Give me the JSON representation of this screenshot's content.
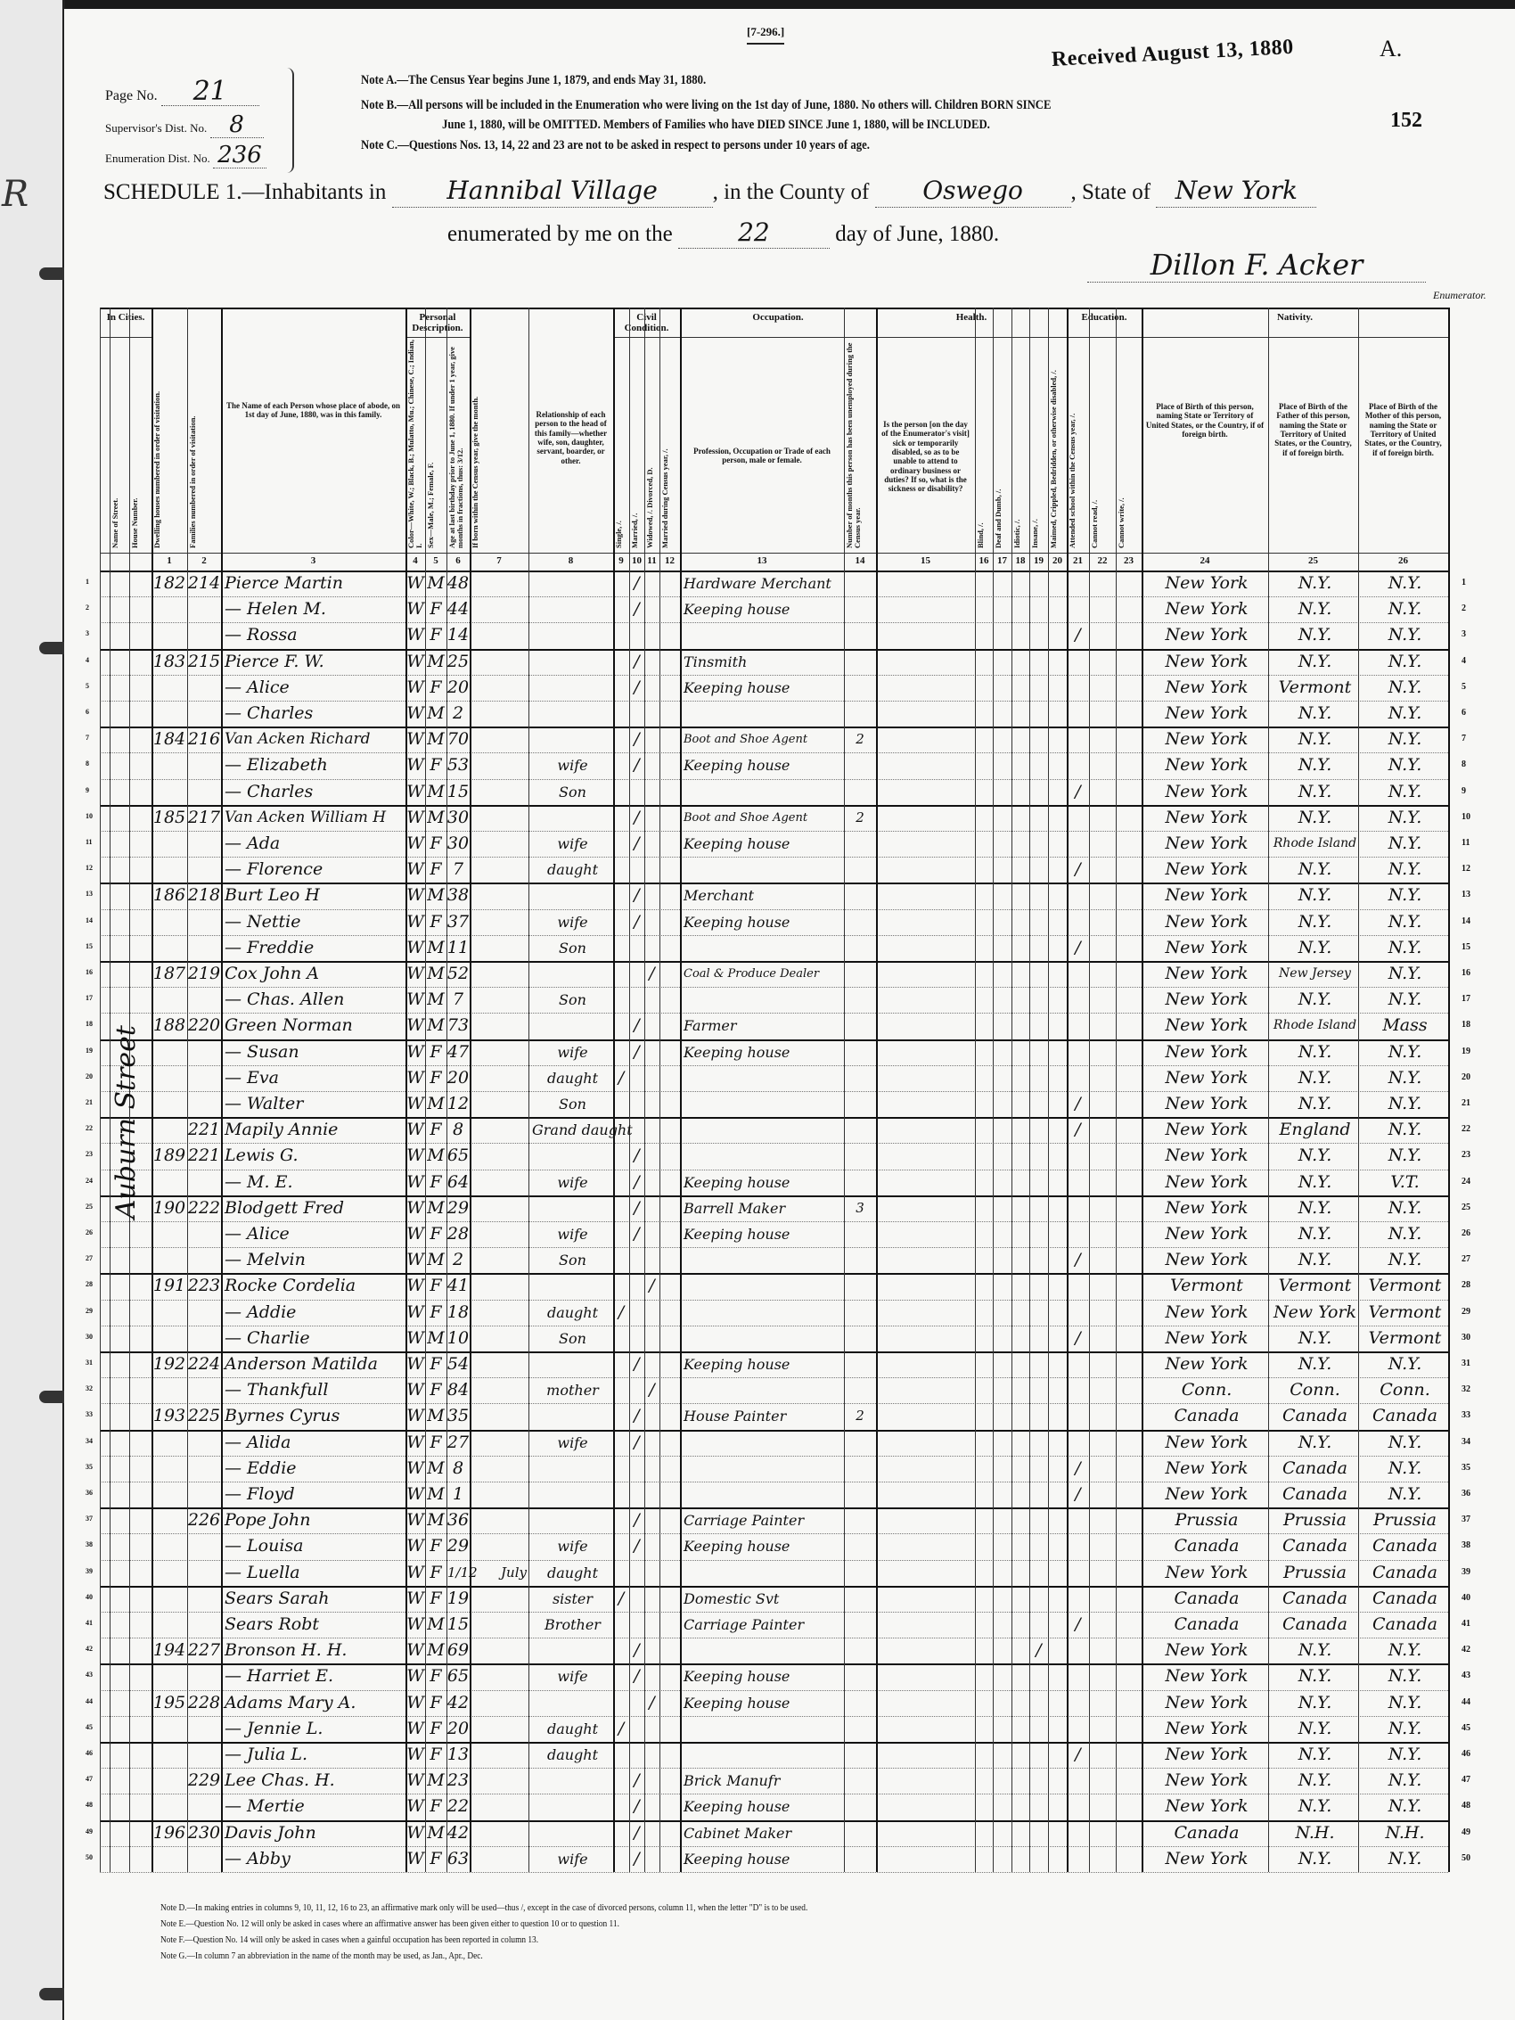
{
  "form": {
    "form_number": "[7-296.]",
    "stamp": "Received August 13, 1880",
    "corner_letter": "A.",
    "stamped_number": "152",
    "page_label": "Page No.",
    "page_no": "21",
    "supervisor_label": "Supervisor's Dist. No.",
    "supervisor_no": "8",
    "enumeration_label": "Enumeration Dist. No.",
    "enumeration_no": "236",
    "notes_top": [
      "Note A.—The Census Year begins June 1, 1879, and ends May 31, 1880.",
      "Note B.—All persons will be included in the Enumeration who were living on the 1st day of June, 1880.  No others will.  Children BORN SINCE",
      "June 1, 1880, will be OMITTED.  Members of Families who have DIED SINCE June 1, 1880, will be INCLUDED.",
      "Note C.—Questions Nos. 13, 14, 22 and 23 are not to be asked in respect to persons under 10 years of age."
    ]
  },
  "schedule": {
    "prefix": "SCHEDULE 1.—Inhabitants in",
    "place": "Hannibal Village",
    "county_label": ", in the County of",
    "county": "Oswego",
    "state_label": ", State of",
    "state": "New York",
    "enum_prefix": "enumerated by me on the",
    "day": "22",
    "enum_suffix": "day of June, 1880.",
    "enumerator_signature": "Dillon F. Acker",
    "enumerator_label": "Enumerator."
  },
  "headers": {
    "groups": {
      "cities": "In Cities.",
      "personal": "Personal Description.",
      "civil": "Civil Condition.",
      "occupation": "Occupation.",
      "health": "Health.",
      "education": "Education.",
      "nativity": "Nativity."
    },
    "columns": {
      "street": {
        "num": "",
        "label": "Name of Street."
      },
      "house": {
        "num": "",
        "label": "House Number."
      },
      "c1": {
        "num": "1",
        "label": "Dwelling houses numbered in order of visitation."
      },
      "c2": {
        "num": "2",
        "label": "Families numbered in order of visitation."
      },
      "c3": {
        "num": "3",
        "label": "The Name of each Person whose place of abode, on 1st day of June, 1880, was in this family."
      },
      "c4": {
        "num": "4",
        "label": "Color—White, W.; Black, B.; Mulatto, Mu.; Chinese, C.; Indian, I."
      },
      "c5": {
        "num": "5",
        "label": "Sex—Male, M.; Female, F."
      },
      "c6": {
        "num": "6",
        "label": "Age at last birthday prior to June 1, 1880. If under 1 year, give months in fractions, thus: 3/12."
      },
      "c7": {
        "num": "7",
        "label": "If born within the Census year, give the month."
      },
      "c8": {
        "num": "8",
        "label": "Relationship of each person to the head of this family—whether wife, son, daughter, servant, boarder, or other."
      },
      "c9": {
        "num": "9",
        "label": "Single, /."
      },
      "c10": {
        "num": "10",
        "label": "Married, /."
      },
      "c11": {
        "num": "11",
        "label": "Widowed, /.  Divorced, D."
      },
      "c12": {
        "num": "12",
        "label": "Married during Census year, /."
      },
      "c13": {
        "num": "13",
        "label": "Profession, Occupation or Trade of each person, male or female."
      },
      "c14": {
        "num": "14",
        "label": "Number of months this person has been unemployed during the Census year."
      },
      "c15": {
        "num": "15",
        "label": "Is the person [on the day of the Enumerator's visit] sick or temporarily disabled, so as to be unable to attend to ordinary business or duties? If so, what is the sickness or disability?"
      },
      "c16": {
        "num": "16",
        "label": "Blind, /."
      },
      "c17": {
        "num": "17",
        "label": "Deaf and Dumb, /."
      },
      "c18": {
        "num": "18",
        "label": "Idiotic, /."
      },
      "c19": {
        "num": "19",
        "label": "Insane, /."
      },
      "c20": {
        "num": "20",
        "label": "Maimed, Crippled, Bedridden, or otherwise disabled, /."
      },
      "c21": {
        "num": "21",
        "label": "Attended school within the Census year, /."
      },
      "c22": {
        "num": "22",
        "label": "Cannot read, /."
      },
      "c23": {
        "num": "23",
        "label": "Cannot write, /."
      },
      "c24": {
        "num": "24",
        "label": "Place of Birth of this person, naming State or Territory of United States, or the Country, if of foreign birth."
      },
      "c25": {
        "num": "25",
        "label": "Place of Birth of the Father of this person, naming the State or Territory of United States, or the Country, if of foreign birth."
      },
      "c26": {
        "num": "26",
        "label": "Place of Birth of the Mother of this person, naming the State or Territory of United States, or the Country, if of foreign birth."
      }
    }
  },
  "street_annotation": "Auburn Street",
  "rows": [
    {
      "n": "1",
      "dw": "182",
      "fam": "214",
      "name": "Pierce Martin",
      "color": "W",
      "sex": "M",
      "age": "48",
      "married": "/",
      "occ": "Hardware Merchant",
      "b": "New York",
      "fb": "N.Y.",
      "mb": "N.Y."
    },
    {
      "n": "2",
      "name": "— Helen M.",
      "color": "W",
      "sex": "F",
      "age": "44",
      "married": "/",
      "occ": "Keeping house",
      "b": "New York",
      "fb": "N.Y.",
      "mb": "N.Y."
    },
    {
      "n": "3",
      "name": "— Rossa",
      "color": "W",
      "sex": "F",
      "age": "14",
      "school": "/",
      "b": "New York",
      "fb": "N.Y.",
      "mb": "N.Y."
    },
    {
      "n": "4",
      "dw": "183",
      "fam": "215",
      "name": "Pierce F. W.",
      "color": "W",
      "sex": "M",
      "age": "25",
      "married": "/",
      "occ": "Tinsmith",
      "b": "New York",
      "fb": "N.Y.",
      "mb": "N.Y."
    },
    {
      "n": "5",
      "name": "— Alice",
      "color": "W",
      "sex": "F",
      "age": "20",
      "married": "/",
      "occ": "Keeping house",
      "b": "New York",
      "fb": "Vermont",
      "mb": "N.Y."
    },
    {
      "n": "6",
      "name": "— Charles",
      "color": "W",
      "sex": "M",
      "age": "2",
      "b": "New York",
      "fb": "N.Y.",
      "mb": "N.Y."
    },
    {
      "n": "7",
      "dw": "184",
      "fam": "216",
      "name": "Van Acken Richard",
      "color": "W",
      "sex": "M",
      "age": "70",
      "married": "/",
      "occ": "Boot and Shoe Agent",
      "unemp": "2",
      "b": "New York",
      "fb": "N.Y.",
      "mb": "N.Y."
    },
    {
      "n": "8",
      "name": "— Elizabeth",
      "color": "W",
      "sex": "F",
      "age": "53",
      "rel": "wife",
      "married": "/",
      "occ": "Keeping house",
      "b": "New York",
      "fb": "N.Y.",
      "mb": "N.Y."
    },
    {
      "n": "9",
      "name": "— Charles",
      "color": "W",
      "sex": "M",
      "age": "15",
      "rel": "Son",
      "school": "/",
      "b": "New York",
      "fb": "N.Y.",
      "mb": "N.Y."
    },
    {
      "n": "10",
      "dw": "185",
      "fam": "217",
      "name": "Van Acken William H",
      "color": "W",
      "sex": "M",
      "age": "30",
      "married": "/",
      "occ": "Boot and Shoe Agent",
      "unemp": "2",
      "b": "New York",
      "fb": "N.Y.",
      "mb": "N.Y."
    },
    {
      "n": "11",
      "name": "— Ada",
      "color": "W",
      "sex": "F",
      "age": "30",
      "rel": "wife",
      "married": "/",
      "occ": "Keeping house",
      "b": "New York",
      "fb": "Rhode Island",
      "mb": "N.Y."
    },
    {
      "n": "12",
      "name": "— Florence",
      "color": "W",
      "sex": "F",
      "age": "7",
      "rel": "daught",
      "school": "/",
      "b": "New York",
      "fb": "N.Y.",
      "mb": "N.Y."
    },
    {
      "n": "13",
      "dw": "186",
      "fam": "218",
      "name": "Burt Leo H",
      "color": "W",
      "sex": "M",
      "age": "38",
      "married": "/",
      "occ": "Merchant",
      "b": "New York",
      "fb": "N.Y.",
      "mb": "N.Y."
    },
    {
      "n": "14",
      "name": "— Nettie",
      "color": "W",
      "sex": "F",
      "age": "37",
      "rel": "wife",
      "married": "/",
      "occ": "Keeping house",
      "b": "New York",
      "fb": "N.Y.",
      "mb": "N.Y."
    },
    {
      "n": "15",
      "name": "— Freddie",
      "color": "W",
      "sex": "M",
      "age": "11",
      "rel": "Son",
      "school": "/",
      "b": "New York",
      "fb": "N.Y.",
      "mb": "N.Y."
    },
    {
      "n": "16",
      "dw": "187",
      "fam": "219",
      "name": "Cox John A",
      "color": "W",
      "sex": "M",
      "age": "52",
      "widowed": "/",
      "occ": "Coal & Produce Dealer",
      "b": "New York",
      "fb": "New Jersey",
      "mb": "N.Y."
    },
    {
      "n": "17",
      "name": "— Chas. Allen",
      "color": "W",
      "sex": "M",
      "age": "7",
      "rel": "Son",
      "b": "New York",
      "fb": "N.Y.",
      "mb": "N.Y."
    },
    {
      "n": "18",
      "dw": "188",
      "fam": "220",
      "name": "Green Norman",
      "color": "W",
      "sex": "M",
      "age": "73",
      "married": "/",
      "occ": "Farmer",
      "b": "New York",
      "fb": "Rhode Island",
      "mb": "Mass"
    },
    {
      "n": "19",
      "name": "— Susan",
      "color": "W",
      "sex": "F",
      "age": "47",
      "rel": "wife",
      "married": "/",
      "occ": "Keeping house",
      "b": "New York",
      "fb": "N.Y.",
      "mb": "N.Y."
    },
    {
      "n": "20",
      "name": "— Eva",
      "color": "W",
      "sex": "F",
      "age": "20",
      "rel": "daught",
      "single": "/",
      "b": "New York",
      "fb": "N.Y.",
      "mb": "N.Y."
    },
    {
      "n": "21",
      "name": "— Walter",
      "color": "W",
      "sex": "M",
      "age": "12",
      "rel": "Son",
      "school": "/",
      "b": "New York",
      "fb": "N.Y.",
      "mb": "N.Y."
    },
    {
      "n": "22",
      "fam": "221",
      "name": "Mapily Annie",
      "color": "W",
      "sex": "F",
      "age": "8",
      "rel": "Grand daught",
      "school": "/",
      "b": "New York",
      "fb": "England",
      "mb": "N.Y."
    },
    {
      "n": "23",
      "dw": "189",
      "fam": "221",
      "name": "Lewis G.",
      "color": "W",
      "sex": "M",
      "age": "65",
      "married": "/",
      "b": "New York",
      "fb": "N.Y.",
      "mb": "N.Y."
    },
    {
      "n": "24",
      "name": "— M. E.",
      "color": "W",
      "sex": "F",
      "age": "64",
      "rel": "wife",
      "married": "/",
      "occ": "Keeping house",
      "b": "New York",
      "fb": "N.Y.",
      "mb": "V.T."
    },
    {
      "n": "25",
      "dw": "190",
      "fam": "222",
      "name": "Blodgett Fred",
      "color": "W",
      "sex": "M",
      "age": "29",
      "married": "/",
      "occ": "Barrell Maker",
      "unemp": "3",
      "b": "New York",
      "fb": "N.Y.",
      "mb": "N.Y."
    },
    {
      "n": "26",
      "name": "— Alice",
      "color": "W",
      "sex": "F",
      "age": "28",
      "rel": "wife",
      "married": "/",
      "occ": "Keeping house",
      "b": "New York",
      "fb": "N.Y.",
      "mb": "N.Y."
    },
    {
      "n": "27",
      "name": "— Melvin",
      "color": "W",
      "sex": "M",
      "age": "2",
      "rel": "Son",
      "school": "/",
      "b": "New York",
      "fb": "N.Y.",
      "mb": "N.Y."
    },
    {
      "n": "28",
      "dw": "191",
      "fam": "223",
      "name": "Rocke Cordelia",
      "color": "W",
      "sex": "F",
      "age": "41",
      "widowed": "/",
      "b": "Vermont",
      "fb": "Vermont",
      "mb": "Vermont"
    },
    {
      "n": "29",
      "name": "— Addie",
      "color": "W",
      "sex": "F",
      "age": "18",
      "rel": "daught",
      "single": "/",
      "b": "New York",
      "fb": "New York",
      "mb": "Vermont"
    },
    {
      "n": "30",
      "name": "— Charlie",
      "color": "W",
      "sex": "M",
      "age": "10",
      "rel": "Son",
      "school": "/",
      "b": "New York",
      "fb": "N.Y.",
      "mb": "Vermont"
    },
    {
      "n": "31",
      "dw": "192",
      "fam": "224",
      "name": "Anderson Matilda",
      "color": "W",
      "sex": "F",
      "age": "54",
      "married": "/",
      "occ": "Keeping house",
      "b": "New York",
      "fb": "N.Y.",
      "mb": "N.Y."
    },
    {
      "n": "32",
      "name": "— Thankfull",
      "color": "W",
      "sex": "F",
      "age": "84",
      "rel": "mother",
      "widowed": "/",
      "b": "Conn.",
      "fb": "Conn.",
      "mb": "Conn."
    },
    {
      "n": "33",
      "dw": "193",
      "fam": "225",
      "name": "Byrnes Cyrus",
      "color": "W",
      "sex": "M",
      "age": "35",
      "married": "/",
      "occ": "House Painter",
      "unemp": "2",
      "b": "Canada",
      "fb": "Canada",
      "mb": "Canada"
    },
    {
      "n": "34",
      "name": "— Alida",
      "color": "W",
      "sex": "F",
      "age": "27",
      "rel": "wife",
      "married": "/",
      "b": "New York",
      "fb": "N.Y.",
      "mb": "N.Y."
    },
    {
      "n": "35",
      "name": "— Eddie",
      "color": "W",
      "sex": "M",
      "age": "8",
      "school": "/",
      "b": "New York",
      "fb": "Canada",
      "mb": "N.Y."
    },
    {
      "n": "36",
      "name": "— Floyd",
      "color": "W",
      "sex": "M",
      "age": "1",
      "school": "/",
      "b": "New York",
      "fb": "Canada",
      "mb": "N.Y."
    },
    {
      "n": "37",
      "fam": "226",
      "name": "Pope John",
      "color": "W",
      "sex": "M",
      "age": "36",
      "married": "/",
      "occ": "Carriage Painter",
      "b": "Prussia",
      "fb": "Prussia",
      "mb": "Prussia"
    },
    {
      "n": "38",
      "name": "— Louisa",
      "color": "W",
      "sex": "F",
      "age": "29",
      "rel": "wife",
      "married": "/",
      "occ": "Keeping house",
      "b": "Canada",
      "fb": "Canada",
      "mb": "Canada"
    },
    {
      "n": "39",
      "name": "— Luella",
      "color": "W",
      "sex": "F",
      "age": "1/12",
      "month": "July",
      "rel": "daught",
      "b": "New York",
      "fb": "Prussia",
      "mb": "Canada"
    },
    {
      "n": "40",
      "name": "Sears Sarah",
      "color": "W",
      "sex": "F",
      "age": "19",
      "rel": "sister",
      "single": "/",
      "occ": "Domestic Svt",
      "b": "Canada",
      "fb": "Canada",
      "mb": "Canada"
    },
    {
      "n": "41",
      "name": "Sears Robt",
      "color": "W",
      "sex": "M",
      "age": "15",
      "rel": "Brother",
      "occ": "Carriage Painter",
      "school": "/",
      "b": "Canada",
      "fb": "Canada",
      "mb": "Canada"
    },
    {
      "n": "42",
      "dw": "194",
      "fam": "227",
      "name": "Bronson H. H.",
      "color": "W",
      "sex": "M",
      "age": "69",
      "married": "/",
      "insane": "/",
      "b": "New York",
      "fb": "N.Y.",
      "mb": "N.Y."
    },
    {
      "n": "43",
      "name": "— Harriet E.",
      "color": "W",
      "sex": "F",
      "age": "65",
      "rel": "wife",
      "married": "/",
      "occ": "Keeping house",
      "b": "New York",
      "fb": "N.Y.",
      "mb": "N.Y."
    },
    {
      "n": "44",
      "dw": "195",
      "fam": "228",
      "name": "Adams Mary A.",
      "color": "W",
      "sex": "F",
      "age": "42",
      "widowed": "/",
      "occ": "Keeping house",
      "b": "New York",
      "fb": "N.Y.",
      "mb": "N.Y."
    },
    {
      "n": "45",
      "name": "— Jennie L.",
      "color": "W",
      "sex": "F",
      "age": "20",
      "rel": "daught",
      "single": "/",
      "b": "New York",
      "fb": "N.Y.",
      "mb": "N.Y."
    },
    {
      "n": "46",
      "name": "— Julia L.",
      "color": "W",
      "sex": "F",
      "age": "13",
      "rel": "daught",
      "school": "/",
      "b": "New York",
      "fb": "N.Y.",
      "mb": "N.Y."
    },
    {
      "n": "47",
      "fam": "229",
      "name": "Lee Chas. H.",
      "color": "W",
      "sex": "M",
      "age": "23",
      "married": "/",
      "occ": "Brick Manufr",
      "b": "New York",
      "fb": "N.Y.",
      "mb": "N.Y."
    },
    {
      "n": "48",
      "name": "— Mertie",
      "color": "W",
      "sex": "F",
      "age": "22",
      "married": "/",
      "occ": "Keeping house",
      "b": "New York",
      "fb": "N.Y.",
      "mb": "N.Y."
    },
    {
      "n": "49",
      "dw": "196",
      "fam": "230",
      "name": "Davis John",
      "color": "W",
      "sex": "M",
      "age": "42",
      "married": "/",
      "occ": "Cabinet Maker",
      "b": "Canada",
      "fb": "N.H.",
      "mb": "N.H."
    },
    {
      "n": "50",
      "name": "— Abby",
      "color": "W",
      "sex": "F",
      "age": "63",
      "rel": "wife",
      "married": "/",
      "occ": "Keeping house",
      "b": "New York",
      "fb": "N.Y.",
      "mb": "N.Y."
    }
  ],
  "notes_bottom": [
    "Note D.—In making entries in columns 9, 10, 11, 12, 16 to 23, an affirmative mark only will be used—thus /, except in the case of divorced persons, column 11, when the letter \"D\" is to be used.",
    "Note E.—Question No. 12 will only be asked in cases where an affirmative answer has been given either to question 10 or to question 11.",
    "Note F.—Question No. 14 will only be asked in cases when a gainful occupation has been reported in column 13.",
    "Note G.—In column 7 an abbreviation in the name of the month may be used, as Jan., Apr., Dec."
  ]
}
